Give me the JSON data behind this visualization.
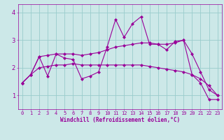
{
  "xlabel": "Windchill (Refroidissement éolien,°C)",
  "xlim": [
    -0.5,
    23.5
  ],
  "ylim": [
    0.5,
    4.3
  ],
  "yticks": [
    1,
    2,
    3,
    4
  ],
  "xticks": [
    0,
    1,
    2,
    3,
    4,
    5,
    6,
    7,
    8,
    9,
    10,
    11,
    12,
    13,
    14,
    15,
    16,
    17,
    18,
    19,
    20,
    21,
    22,
    23
  ],
  "background_color": "#cce8e8",
  "line_color": "#990099",
  "grid_color": "#99cccc",
  "y_jagged": [
    1.45,
    1.75,
    2.4,
    1.7,
    2.5,
    2.35,
    2.3,
    1.6,
    1.7,
    1.85,
    2.75,
    3.75,
    3.1,
    3.6,
    3.85,
    2.85,
    2.85,
    2.65,
    2.95,
    3.0,
    1.75,
    1.45,
    0.85,
    0.85
  ],
  "y_upper": [
    1.45,
    1.75,
    2.4,
    2.45,
    2.5,
    2.5,
    2.5,
    2.45,
    2.5,
    2.55,
    2.65,
    2.75,
    2.8,
    2.85,
    2.9,
    2.9,
    2.85,
    2.85,
    2.9,
    3.0,
    2.5,
    1.85,
    1.2,
    1.0
  ],
  "y_lower": [
    1.45,
    1.75,
    2.0,
    2.05,
    2.1,
    2.1,
    2.15,
    2.1,
    2.1,
    2.1,
    2.1,
    2.1,
    2.1,
    2.1,
    2.1,
    2.05,
    2.0,
    1.95,
    1.9,
    1.85,
    1.75,
    1.6,
    1.35,
    1.0
  ],
  "xlabel_fontsize": 5.5,
  "tick_fontsize": 5.0,
  "marker_size": 2.5,
  "line_width": 0.8
}
